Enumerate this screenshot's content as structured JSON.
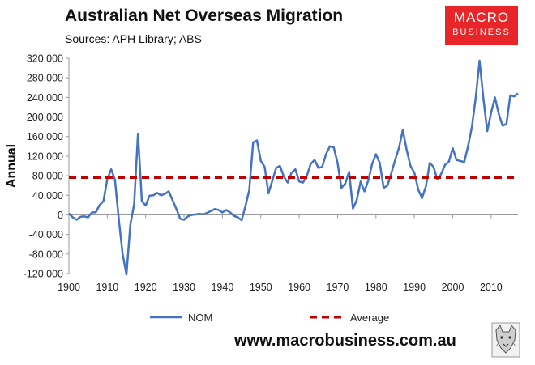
{
  "chart_data": {
    "type": "line",
    "title": "Australian Net Overseas Migration",
    "subtitle": "Sources: APH Library; ABS",
    "ylabel": "Annual",
    "xlabel": "",
    "xlim": [
      1900,
      2017
    ],
    "ylim": [
      -120000,
      320000
    ],
    "x_ticks": [
      1900,
      1910,
      1920,
      1930,
      1940,
      1950,
      1960,
      1970,
      1980,
      1990,
      2000,
      2010
    ],
    "y_ticks": [
      -120000,
      -80000,
      -40000,
      0,
      40000,
      80000,
      120000,
      160000,
      200000,
      240000,
      280000,
      320000
    ],
    "y_tick_labels": [
      "-120,000",
      "-80,000",
      "-40,000",
      "0",
      "40,000",
      "80,000",
      "120,000",
      "160,000",
      "200,000",
      "240,000",
      "280,000",
      "320,000"
    ],
    "grid": false,
    "legend_position": "bottom",
    "series": [
      {
        "name": "NOM",
        "style": "solid",
        "color": "#4472c4",
        "x": [
          1900,
          1901,
          1902,
          1903,
          1904,
          1905,
          1906,
          1907,
          1908,
          1909,
          1910,
          1911,
          1912,
          1913,
          1914,
          1915,
          1916,
          1917,
          1918,
          1919,
          1920,
          1921,
          1922,
          1923,
          1924,
          1925,
          1926,
          1927,
          1928,
          1929,
          1930,
          1931,
          1932,
          1933,
          1934,
          1935,
          1936,
          1937,
          1938,
          1939,
          1940,
          1941,
          1942,
          1943,
          1944,
          1945,
          1946,
          1947,
          1948,
          1949,
          1950,
          1951,
          1952,
          1953,
          1954,
          1955,
          1956,
          1957,
          1958,
          1959,
          1960,
          1961,
          1962,
          1963,
          1964,
          1965,
          1966,
          1967,
          1968,
          1969,
          1970,
          1971,
          1972,
          1973,
          1974,
          1975,
          1976,
          1977,
          1978,
          1979,
          1980,
          1981,
          1982,
          1983,
          1984,
          1985,
          1986,
          1987,
          1988,
          1989,
          1990,
          1991,
          1992,
          1993,
          1994,
          1995,
          1996,
          1997,
          1998,
          1999,
          2000,
          2001,
          2002,
          2003,
          2004,
          2005,
          2006,
          2007,
          2008,
          2009,
          2010,
          2011,
          2012,
          2013,
          2014,
          2015,
          2016,
          2017
        ],
        "values": [
          3000,
          -5000,
          -10000,
          -4000,
          -3000,
          -5000,
          5000,
          5000,
          20000,
          28000,
          73000,
          93000,
          72000,
          -10000,
          -80000,
          -122000,
          -20000,
          22000,
          166000,
          28000,
          19000,
          39000,
          40000,
          45000,
          40000,
          43000,
          48000,
          30000,
          12000,
          -8000,
          -10000,
          -3000,
          0,
          1000,
          2000,
          1000,
          4000,
          8000,
          12000,
          10000,
          5000,
          10000,
          5000,
          -2000,
          -5000,
          -11000,
          18000,
          50000,
          148000,
          152000,
          110000,
          98000,
          44000,
          70000,
          96000,
          100000,
          78000,
          66000,
          86000,
          93000,
          68000,
          66000,
          80000,
          104000,
          112000,
          96000,
          98000,
          124000,
          140000,
          138000,
          106000,
          55000,
          64000,
          88000,
          13000,
          30000,
          68000,
          48000,
          70000,
          104000,
          124000,
          106000,
          55000,
          60000,
          85000,
          112000,
          137000,
          173000,
          133000,
          100000,
          86000,
          52000,
          34000,
          58000,
          106000,
          98000,
          72000,
          84000,
          102000,
          109000,
          136000,
          112000,
          110000,
          108000,
          140000,
          180000,
          240000,
          315000,
          237000,
          171000,
          209000,
          240000,
          206000,
          182000,
          186000,
          244000,
          242000,
          248000
        ]
      },
      {
        "name": "Average",
        "style": "dashed",
        "color": "#c00000",
        "x": [
          1900,
          2017
        ],
        "values": [
          76000,
          76000
        ]
      }
    ]
  },
  "logo": {
    "line1": "MACRO",
    "line2": "BUSINESS"
  },
  "website": "www.macrobusiness.com.au",
  "wolf_icon": "wolf-logo-icon"
}
